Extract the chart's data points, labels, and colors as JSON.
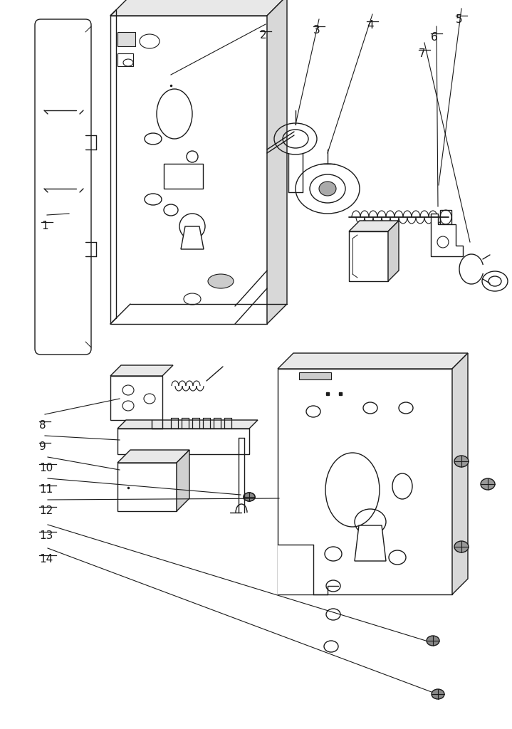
{
  "bg_color": "#ffffff",
  "line_color": "#1a1a1a",
  "lw": 1.0,
  "figsize": [
    7.19,
    10.24
  ],
  "dpi": 100
}
